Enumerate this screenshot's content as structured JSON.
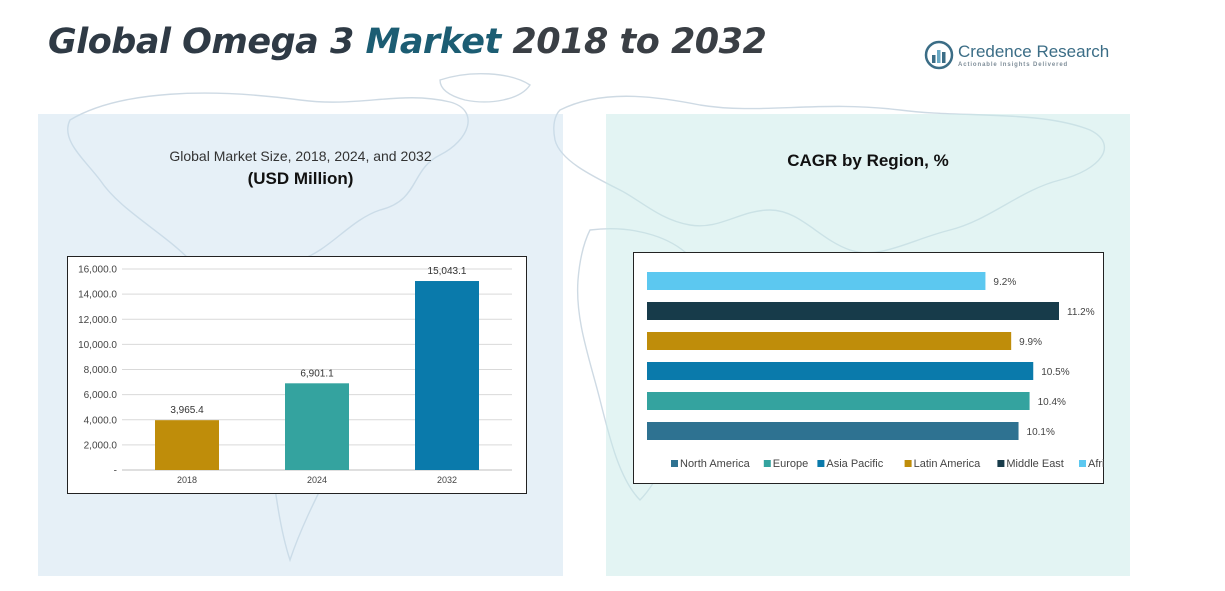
{
  "header": {
    "title_part1": "Global Omega 3",
    "title_part2": "Market",
    "title_part3": "2018 to 2032"
  },
  "logo": {
    "name_part1": "Credence",
    "name_part2": "Research",
    "tagline": "Actionable Insights Delivered"
  },
  "left_panel": {
    "subtitle_line1": "Global Market Size, 2018, 2024, and 2032",
    "subtitle_line2": "(USD Million)"
  },
  "right_panel": {
    "title": "CAGR by Region, %"
  },
  "colors": {
    "panel_left_bg": "#dbe8f2",
    "panel_right_bg": "#d9efed"
  },
  "chart_data": [
    {
      "type": "bar",
      "title": "Global Market Size, 2018, 2024, and 2032",
      "subtitle": "(USD Million)",
      "categories": [
        "2018",
        "2024",
        "2032"
      ],
      "values": [
        3965.4,
        6901.1,
        15043.1
      ],
      "value_labels": [
        "3,965.4",
        "6,901.1",
        "15,043.1"
      ],
      "colors": [
        "#bf8d0a",
        "#34a39f",
        "#0a7aab"
      ],
      "ylim": [
        0,
        16000
      ],
      "yticks": [
        0,
        2000,
        4000,
        6000,
        8000,
        10000,
        12000,
        14000,
        16000
      ],
      "ytick_labels": [
        "-",
        "2,000.0",
        "4,000.0",
        "6,000.0",
        "8,000.0",
        "10,000.0",
        "12,000.0",
        "14,000.0",
        "16,000.0"
      ],
      "grid": true,
      "xlabel": "",
      "ylabel": ""
    },
    {
      "type": "bar",
      "orientation": "horizontal",
      "title": "CAGR by Region, %",
      "categories": [
        "North America",
        "Europe",
        "Asia Pacific",
        "Latin America",
        "Middle East",
        "Africa"
      ],
      "values": [
        10.1,
        10.4,
        10.5,
        9.9,
        11.2,
        9.2
      ],
      "value_labels": [
        "10.1%",
        "10.4%",
        "10.5%",
        "9.9%",
        "11.2%",
        "9.2%"
      ],
      "colors": [
        "#2e7291",
        "#34a39f",
        "#0a7aab",
        "#bf8d0a",
        "#173b4a",
        "#5cc8f0"
      ],
      "legend": "bottom",
      "grid": false
    }
  ]
}
